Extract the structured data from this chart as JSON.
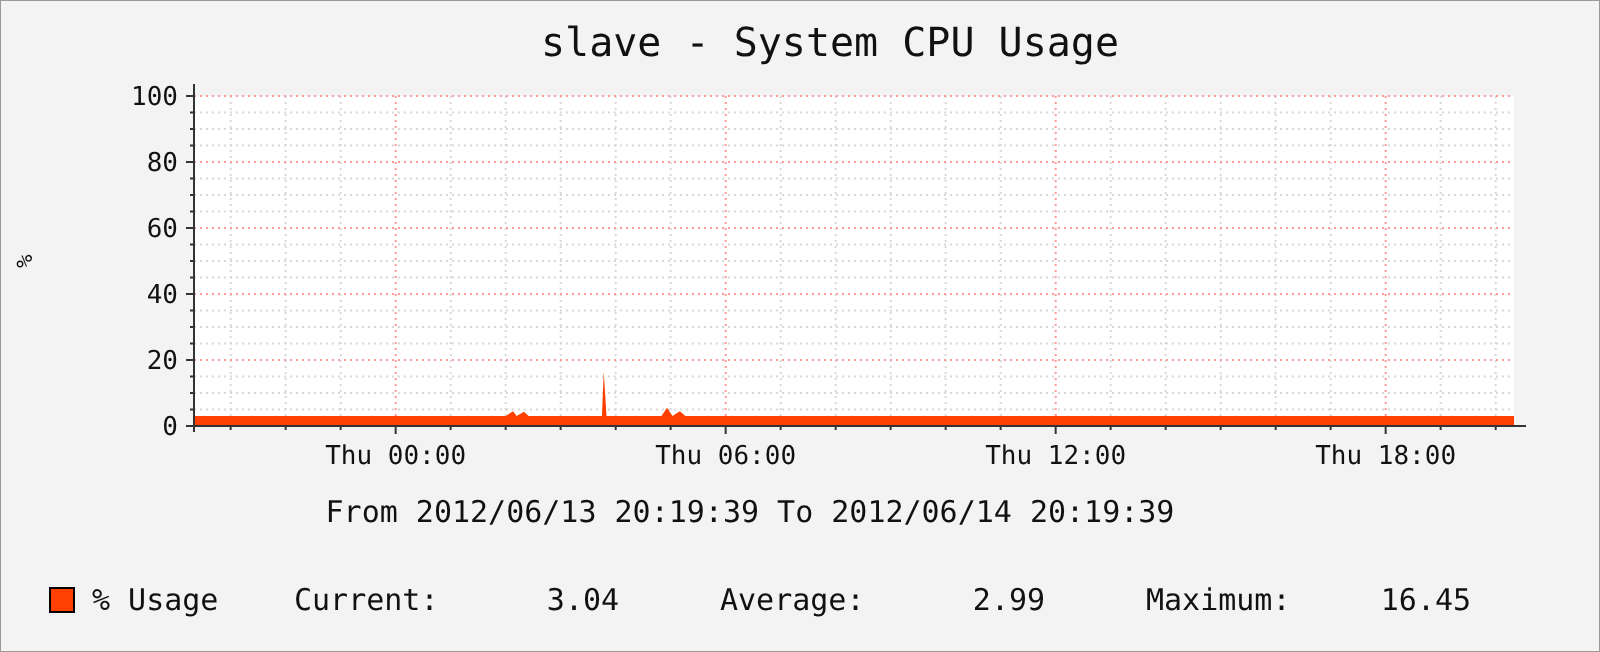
{
  "chart_data": {
    "type": "area",
    "title": "slave - System CPU Usage",
    "ylabel": "%",
    "annotations": [
      "From 2012/06/13 20:19:39 To 2012/06/14 20:19:39",
      "Current:      3.04",
      "Average:      2.99",
      "Maximum:     16.45"
    ],
    "x": [
      "2012-06-13T20:20",
      "2012-06-13T21:00",
      "2012-06-13T22:00",
      "2012-06-13T23:00",
      "2012-06-14T00:00",
      "2012-06-14T01:00",
      "2012-06-14T02:00",
      "2012-06-14T02:08",
      "2012-06-14T02:12",
      "2012-06-14T02:20",
      "2012-06-14T02:25",
      "2012-06-14T03:00",
      "2012-06-14T03:40",
      "2012-06-14T03:45",
      "2012-06-14T03:47",
      "2012-06-14T03:50",
      "2012-06-14T04:00",
      "2012-06-14T04:50",
      "2012-06-14T04:56",
      "2012-06-14T05:02",
      "2012-06-14T05:10",
      "2012-06-14T05:16",
      "2012-06-14T06:00",
      "2012-06-14T07:00",
      "2012-06-14T08:00",
      "2012-06-14T09:00",
      "2012-06-14T10:00",
      "2012-06-14T11:00",
      "2012-06-14T12:00",
      "2012-06-14T13:00",
      "2012-06-14T14:00",
      "2012-06-14T15:00",
      "2012-06-14T16:00",
      "2012-06-14T17:00",
      "2012-06-14T18:00",
      "2012-06-14T19:00",
      "2012-06-14T20:20"
    ],
    "series": [
      {
        "name": "% Usage",
        "color": "#ff4000",
        "values": [
          3,
          3,
          3,
          3,
          3,
          3,
          3,
          4.5,
          3,
          4.3,
          3,
          3,
          3,
          3,
          16.45,
          3,
          3,
          3,
          5.5,
          3,
          4.5,
          3,
          3,
          3,
          3,
          3,
          3,
          3,
          3,
          3,
          3,
          3,
          3,
          3,
          3,
          3,
          3.04
        ]
      }
    ],
    "xlim": [
      "2012-06-13T20:20",
      "2012-06-14T20:20"
    ],
    "xticks": [
      {
        "value": "2012-06-13T21:00",
        "label": null
      },
      {
        "value": "2012-06-13T22:00",
        "label": null
      },
      {
        "value": "2012-06-13T23:00",
        "label": null
      },
      {
        "value": "2012-06-14T00:00",
        "label": "Thu 00:00"
      },
      {
        "value": "2012-06-14T01:00",
        "label": null
      },
      {
        "value": "2012-06-14T02:00",
        "label": null
      },
      {
        "value": "2012-06-14T03:00",
        "label": null
      },
      {
        "value": "2012-06-14T04:00",
        "label": null
      },
      {
        "value": "2012-06-14T05:00",
        "label": null
      },
      {
        "value": "2012-06-14T06:00",
        "label": "Thu 06:00"
      },
      {
        "value": "2012-06-14T07:00",
        "label": null
      },
      {
        "value": "2012-06-14T08:00",
        "label": null
      },
      {
        "value": "2012-06-14T09:00",
        "label": null
      },
      {
        "value": "2012-06-14T10:00",
        "label": null
      },
      {
        "value": "2012-06-14T11:00",
        "label": null
      },
      {
        "value": "2012-06-14T12:00",
        "label": "Thu 12:00"
      },
      {
        "value": "2012-06-14T13:00",
        "label": null
      },
      {
        "value": "2012-06-14T14:00",
        "label": null
      },
      {
        "value": "2012-06-14T15:00",
        "label": null
      },
      {
        "value": "2012-06-14T16:00",
        "label": null
      },
      {
        "value": "2012-06-14T17:00",
        "label": null
      },
      {
        "value": "2012-06-14T18:00",
        "label": "Thu 18:00"
      },
      {
        "value": "2012-06-14T19:00",
        "label": null
      },
      {
        "value": "2012-06-14T20:00",
        "label": null
      }
    ],
    "ylim": [
      0,
      100
    ],
    "yticks": [
      0,
      {
        "value": 5,
        "label": null
      },
      {
        "value": 10,
        "label": null
      },
      {
        "value": 15,
        "label": null
      },
      20,
      {
        "value": 25,
        "label": null
      },
      {
        "value": 30,
        "label": null
      },
      {
        "value": 35,
        "label": null
      },
      40,
      {
        "value": 45,
        "label": null
      },
      {
        "value": 50,
        "label": null
      },
      {
        "value": 55,
        "label": null
      },
      60,
      {
        "value": 65,
        "label": null
      },
      {
        "value": 70,
        "label": null
      },
      {
        "value": 75,
        "label": null
      },
      80,
      {
        "value": 85,
        "label": null
      },
      {
        "value": 90,
        "label": null
      },
      {
        "value": 95,
        "label": null
      },
      100
    ],
    "grid": true,
    "legend": "bottom"
  }
}
